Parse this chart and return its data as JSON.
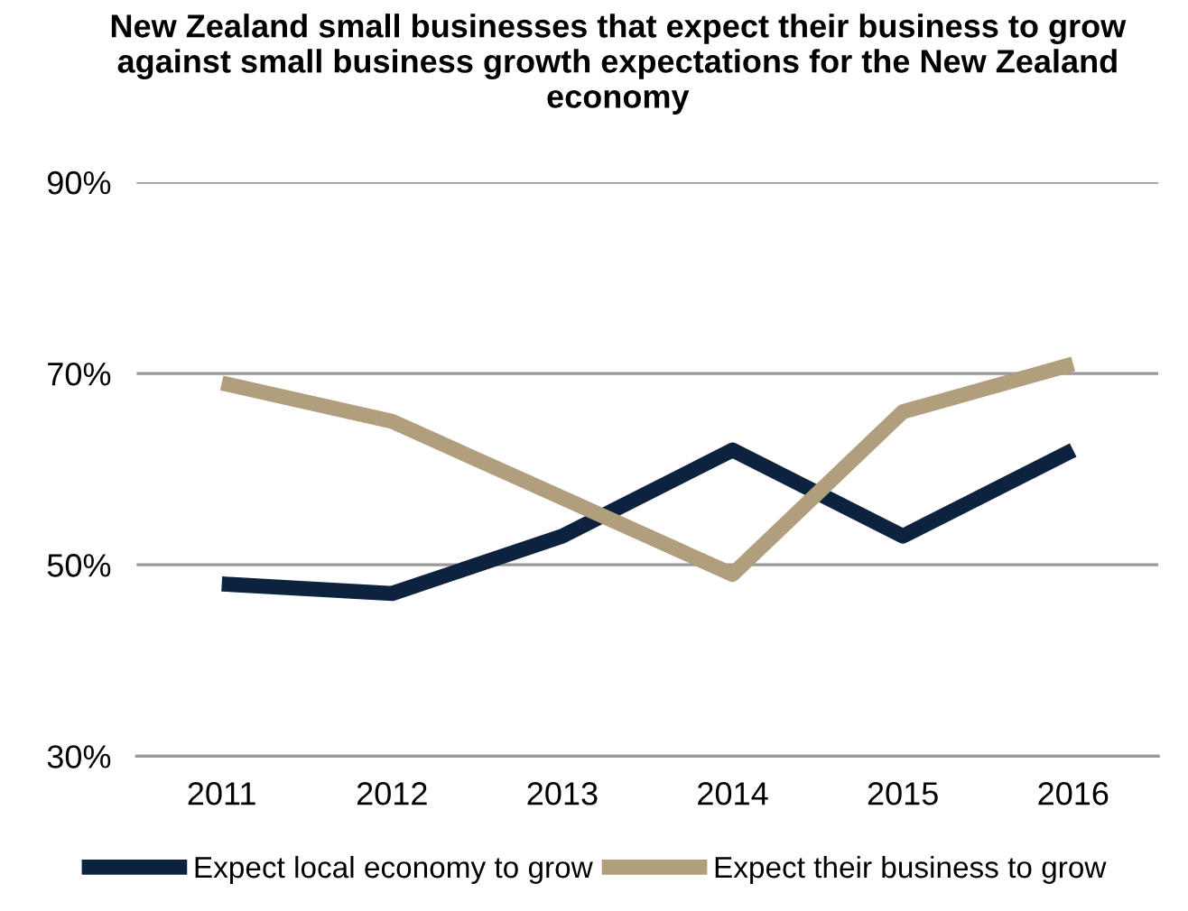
{
  "chart_data": {
    "type": "line",
    "title": "New Zealand small businesses that expect their business to grow against small business growth expectations for the New Zealand economy",
    "categories": [
      "2011",
      "2012",
      "2013",
      "2014",
      "2015",
      "2016"
    ],
    "series": [
      {
        "name": "Expect local economy to grow",
        "color": "#0c2340",
        "values": [
          48,
          47,
          53,
          62,
          53,
          62
        ]
      },
      {
        "name": "Expect their business to grow",
        "color": "#b09e7d",
        "values": [
          69,
          65,
          57,
          49,
          66,
          71
        ]
      }
    ],
    "ylim": [
      30,
      90
    ],
    "yticks": [
      {
        "value": 30,
        "label": "30%"
      },
      {
        "value": 50,
        "label": "50%"
      },
      {
        "value": 70,
        "label": "70%"
      },
      {
        "value": 90,
        "label": "90%"
      }
    ],
    "grid": "y",
    "legend": "bottom",
    "marker": "none",
    "line_style": "solid"
  }
}
